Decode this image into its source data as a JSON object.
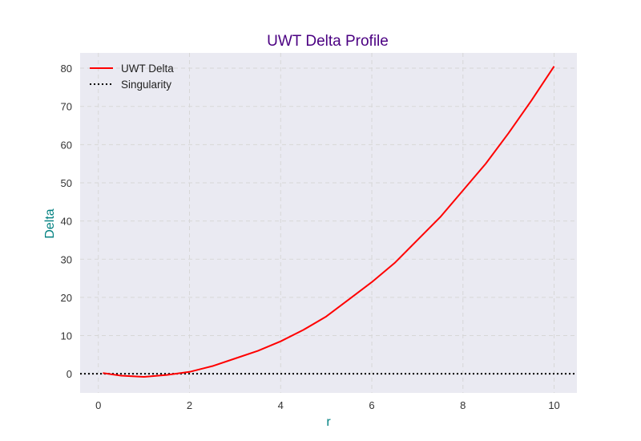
{
  "chart_data": {
    "type": "line",
    "title": "UWT Delta Profile",
    "xlabel": "r",
    "ylabel": "Delta",
    "xlim": [
      -0.4,
      10.5
    ],
    "ylim": [
      -5,
      84
    ],
    "xticks": [
      0,
      2,
      4,
      6,
      8,
      10
    ],
    "yticks": [
      0,
      10,
      20,
      30,
      40,
      50,
      60,
      70,
      80
    ],
    "grid": true,
    "legend_position": "upper-left",
    "colors": {
      "title": "#4b0082",
      "axis_label": "#008080",
      "plot_background": "#eaeaf2",
      "grid": "#d7d7d7",
      "series_delta": "#ff0000",
      "series_singularity": "#000000"
    },
    "series": [
      {
        "name": "UWT Delta",
        "style": "solid",
        "x": [
          0.1,
          0.5,
          1.0,
          1.5,
          2.0,
          2.5,
          3.0,
          3.5,
          4.0,
          4.5,
          5.0,
          5.5,
          6.0,
          6.5,
          7.0,
          7.5,
          8.0,
          8.5,
          9.0,
          9.5,
          10.0
        ],
        "y": [
          0.2,
          -0.5,
          -0.8,
          -0.3,
          0.5,
          2.0,
          4.0,
          6.0,
          8.5,
          11.5,
          15.0,
          19.5,
          24.0,
          29.0,
          35.0,
          41.0,
          48.0,
          55.0,
          63.0,
          71.5,
          80.5
        ]
      },
      {
        "name": "Singularity",
        "style": "dotted",
        "y_constant": 0
      }
    ]
  }
}
